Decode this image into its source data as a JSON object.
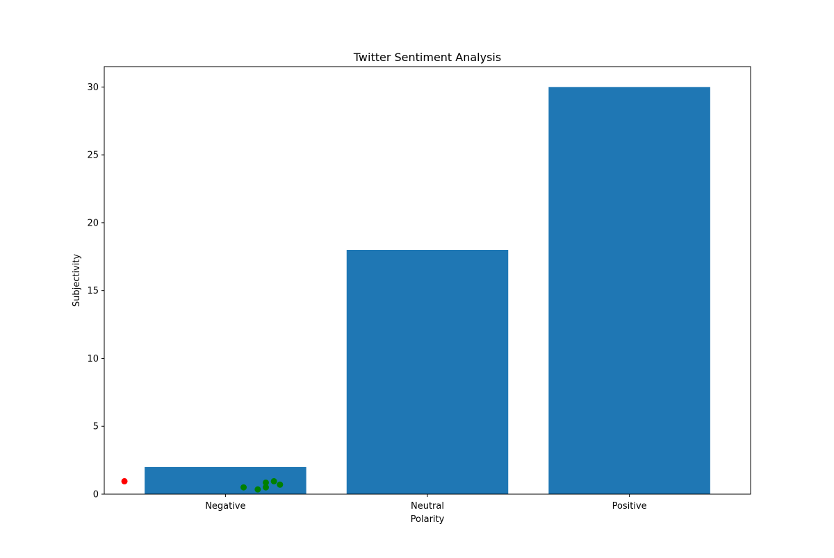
{
  "chart_data": {
    "type": "bar",
    "title": "Twitter Sentiment Analysis",
    "xlabel": "Polarity",
    "ylabel": "Subjectivity",
    "categories": [
      "Negative",
      "Neutral",
      "Positive"
    ],
    "values": [
      2,
      18,
      30
    ],
    "ylim": [
      0,
      31.5
    ],
    "yticks": [
      0,
      5,
      10,
      15,
      20,
      25,
      30
    ],
    "grid": false,
    "legend": "none",
    "bar_color": "#1f77b4",
    "scatter_points": [
      {
        "x": -0.5,
        "y": 0.95,
        "color": "#ff0000"
      },
      {
        "x": 0.09,
        "y": 0.5,
        "color": "#008000"
      },
      {
        "x": 0.16,
        "y": 0.35,
        "color": "#008000"
      },
      {
        "x": 0.2,
        "y": 0.5,
        "color": "#008000"
      },
      {
        "x": 0.2,
        "y": 0.85,
        "color": "#008000"
      },
      {
        "x": 0.24,
        "y": 0.95,
        "color": "#008000"
      },
      {
        "x": 0.27,
        "y": 0.7,
        "color": "#008000"
      }
    ]
  }
}
